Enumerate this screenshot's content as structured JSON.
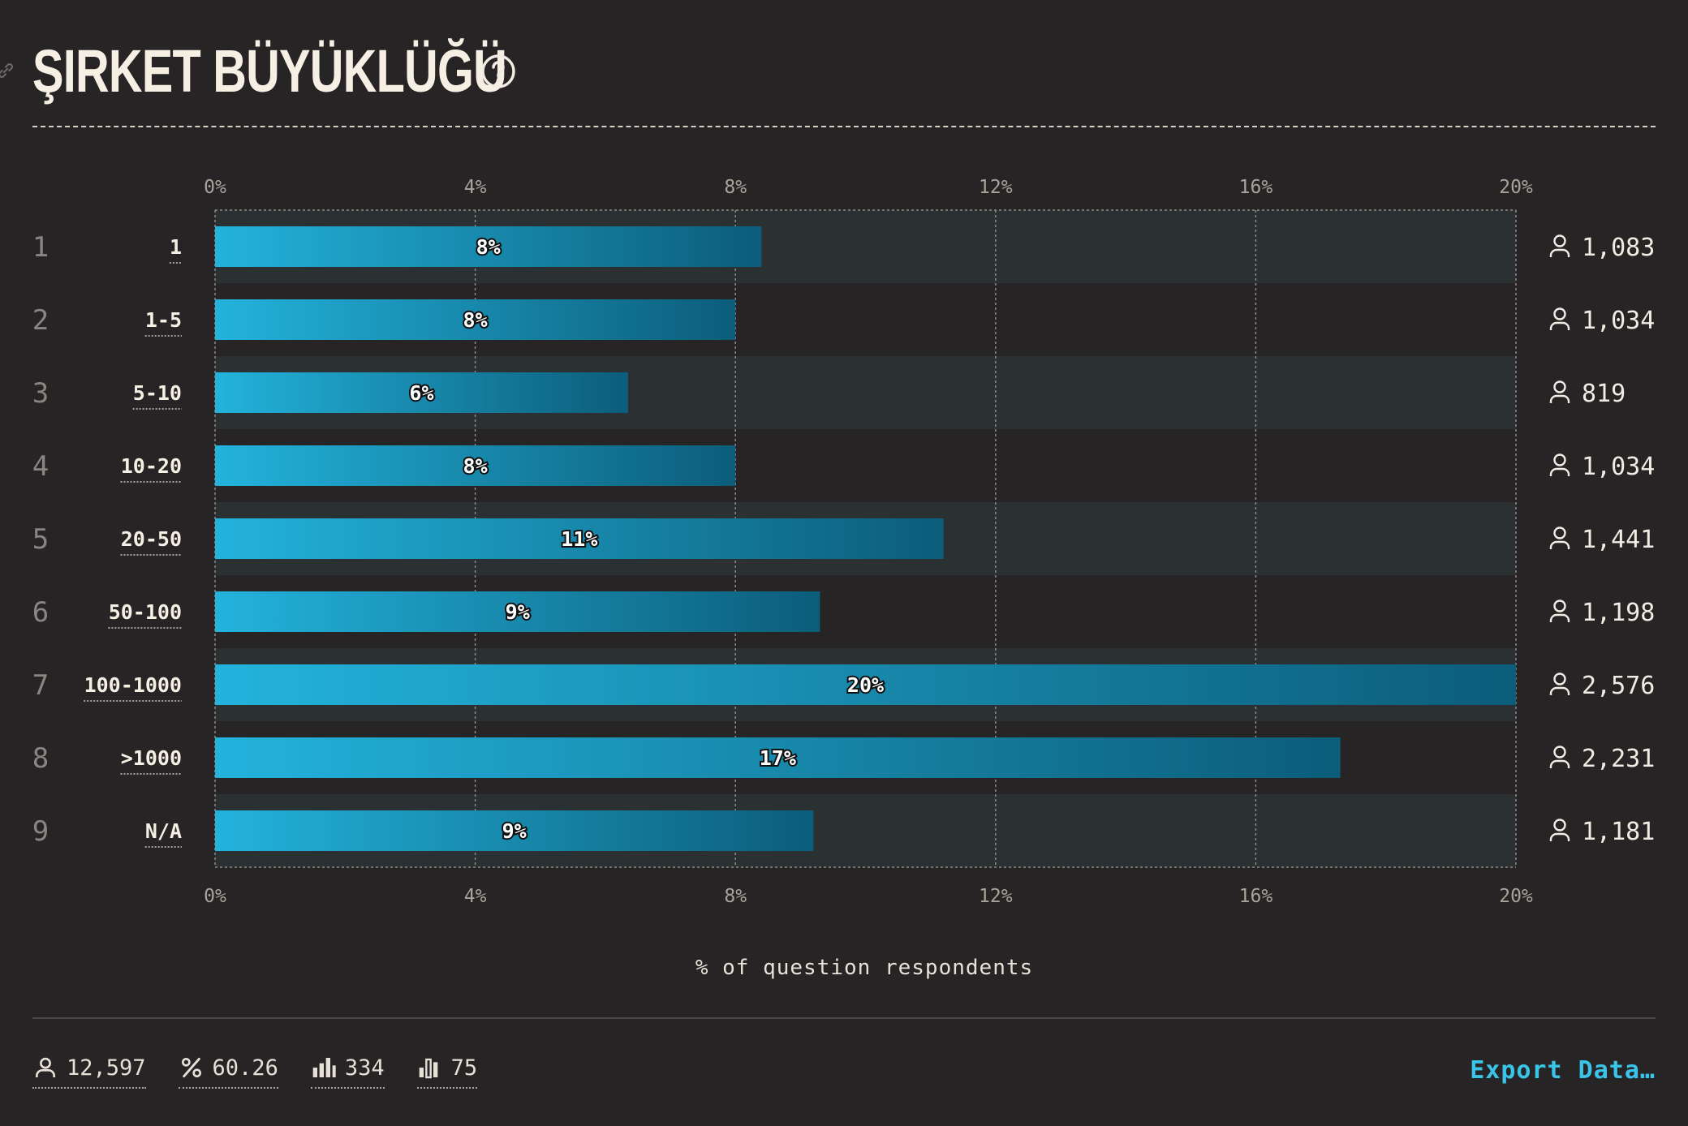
{
  "title": "ŞIRKET BÜYÜKLÜĞÜ",
  "colors": {
    "background": "#272426",
    "row_stripe": "#2b3033",
    "bar_start": "#23b3dc",
    "bar_end": "#0c5d7a",
    "accent": "#3ac4e8",
    "text": "#f2ece4",
    "muted": "#8a8580"
  },
  "chart_data": {
    "type": "bar",
    "orientation": "horizontal",
    "categories": [
      "1",
      "1-5",
      "5-10",
      "10-20",
      "20-50",
      "50-100",
      "100-1000",
      ">1000",
      "N/A"
    ],
    "row_numbers": [
      "1",
      "2",
      "3",
      "4",
      "5",
      "6",
      "7",
      "8",
      "9"
    ],
    "values": [
      8.4,
      8.0,
      6.35,
      8.0,
      11.2,
      9.3,
      20.0,
      17.3,
      9.2
    ],
    "value_labels": [
      "8%",
      "8%",
      "6%",
      "8%",
      "11%",
      "9%",
      "20%",
      "17%",
      "9%"
    ],
    "respondents": [
      "1,083",
      "1,034",
      "819",
      "1,034",
      "1,441",
      "1,198",
      "2,576",
      "2,231",
      "1,181"
    ],
    "xlim": [
      0,
      20
    ],
    "x_ticks": [
      0,
      4,
      8,
      12,
      16,
      20
    ],
    "x_tick_labels": [
      "0%",
      "4%",
      "8%",
      "12%",
      "16%",
      "20%"
    ],
    "xlabel": "% of question respondents",
    "grid": true,
    "legend": "none"
  },
  "footer": {
    "respondents": "12,597",
    "percent": "60.26",
    "stat_a": "334",
    "stat_b": "75",
    "export_label": "Export Data…"
  },
  "icons": {
    "title_link": "link-icon",
    "help": "question-circle-icon",
    "respondent": "user-icon",
    "percent": "percent-icon",
    "bars_a": "bar-chart-icon",
    "bars_b": "bar-chart-outline-icon"
  }
}
